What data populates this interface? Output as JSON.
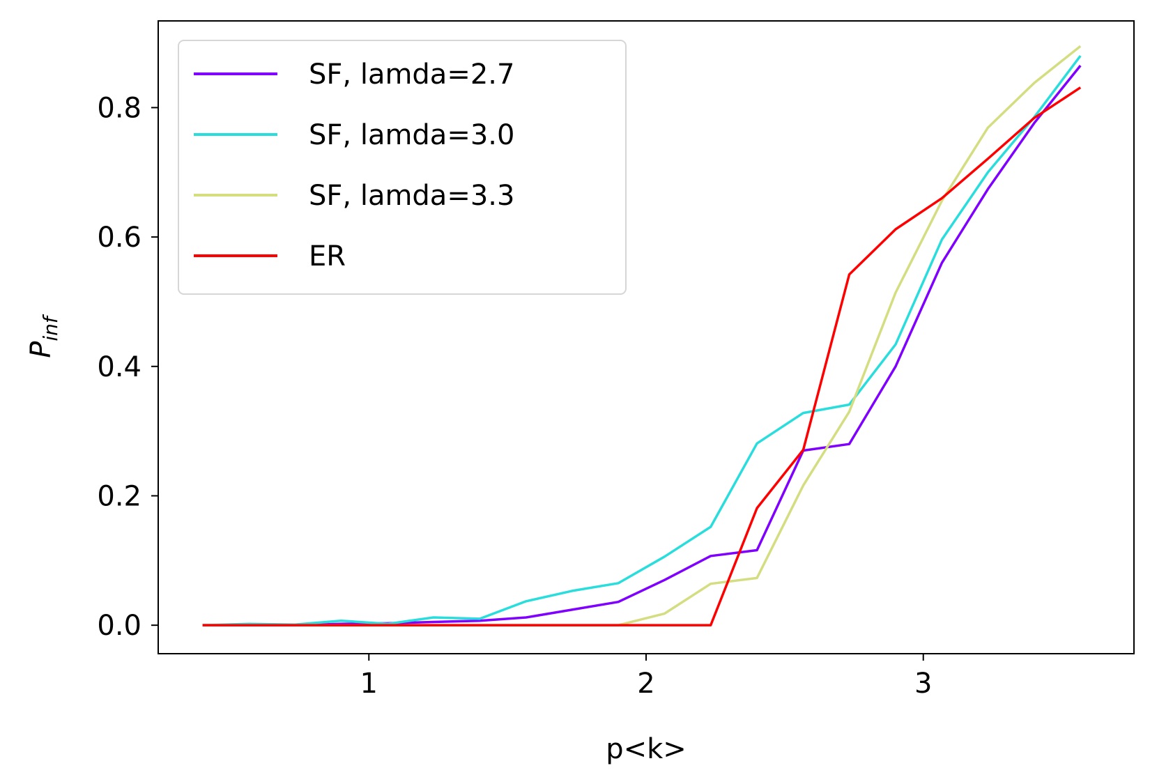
{
  "chart_data": {
    "type": "line",
    "title": "",
    "xlabel": "p<k>",
    "ylabel_main": "P",
    "ylabel_sub": "inf",
    "xlim": [
      0.24,
      3.76
    ],
    "ylim": [
      -0.044,
      0.934
    ],
    "xticks": [
      1,
      2,
      3
    ],
    "xtick_labels": [
      "1",
      "2",
      "3"
    ],
    "yticks": [
      0.0,
      0.2,
      0.4,
      0.6,
      0.8
    ],
    "ytick_labels": [
      "0.0",
      "0.2",
      "0.4",
      "0.6",
      "0.8"
    ],
    "grid": false,
    "legend_position": "upper-left",
    "x": [
      0.4,
      0.567,
      0.733,
      0.9,
      1.067,
      1.233,
      1.4,
      1.567,
      1.733,
      1.9,
      2.067,
      2.233,
      2.4,
      2.567,
      2.733,
      2.9,
      3.067,
      3.233,
      3.4,
      3.567
    ],
    "series": [
      {
        "name": "SF, lamda=2.7",
        "color": "#8000ff",
        "values": [
          0.0,
          0.0,
          0.0,
          0.002,
          0.003,
          0.005,
          0.007,
          0.012,
          0.024,
          0.036,
          0.07,
          0.107,
          0.116,
          0.27,
          0.28,
          0.4,
          0.56,
          0.674,
          0.776,
          0.865
        ]
      },
      {
        "name": "SF, lamda=3.0",
        "color": "#2adddd",
        "values": [
          0.0,
          0.002,
          0.001,
          0.007,
          0.002,
          0.012,
          0.01,
          0.037,
          0.053,
          0.065,
          0.106,
          0.152,
          0.281,
          0.328,
          0.341,
          0.434,
          0.596,
          0.7,
          0.785,
          0.88
        ]
      },
      {
        "name": "SF, lamda=3.3",
        "color": "#d4dd80",
        "values": [
          0.0,
          0.0,
          0.0,
          0.0,
          0.0,
          0.0,
          0.0,
          0.0,
          0.0,
          0.0,
          0.018,
          0.064,
          0.073,
          0.216,
          0.33,
          0.514,
          0.656,
          0.769,
          0.838,
          0.895
        ]
      },
      {
        "name": "ER",
        "color": "#ff0000",
        "values": [
          0.0,
          0.0,
          0.0,
          0.0,
          0.0,
          0.0,
          0.0,
          0.0,
          0.0,
          0.0,
          0.0,
          0.0,
          0.181,
          0.271,
          0.542,
          0.612,
          0.66,
          0.721,
          0.784,
          0.831
        ]
      }
    ]
  }
}
